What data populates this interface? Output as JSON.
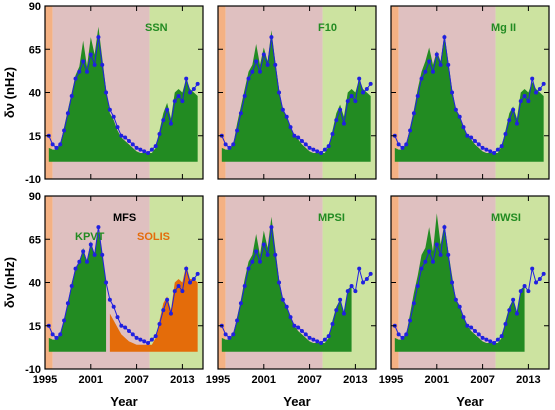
{
  "chart_data": {
    "type": "area",
    "ylabel": "δν (nHz)",
    "xlabel": "Year",
    "xlim": [
      1995,
      2015.7
    ],
    "ylim": [
      -10,
      90
    ],
    "xticks": [
      "1995",
      "2001",
      "2007",
      "2013"
    ],
    "yticks": [
      "-10",
      "15",
      "40",
      "65",
      "90"
    ],
    "regions": [
      {
        "from": 1995,
        "to": 1996.0,
        "color": "#f4b183"
      },
      {
        "from": 1996.0,
        "to": 2008.7,
        "color": "#dfc0c0"
      },
      {
        "from": 2008.7,
        "to": 2015.7,
        "color": "#cce3a0"
      }
    ],
    "frequency_shift": {
      "x": [
        1995.5,
        1996.0,
        1996.5,
        1997.0,
        1997.5,
        1998.0,
        1998.5,
        1999.0,
        1999.5,
        2000.0,
        2000.5,
        2001.0,
        2001.5,
        2002.0,
        2002.5,
        2003.0,
        2003.5,
        2004.0,
        2004.5,
        2005.0,
        2005.5,
        2006.0,
        2006.5,
        2007.0,
        2007.5,
        2008.0,
        2008.5,
        2009.0,
        2009.5,
        2010.0,
        2010.5,
        2011.0,
        2011.5,
        2012.0,
        2012.5,
        2013.0,
        2013.5,
        2014.0,
        2014.5,
        2015.0
      ],
      "y": [
        15,
        10,
        8,
        10,
        18,
        28,
        38,
        48,
        52,
        58,
        52,
        62,
        56,
        72,
        56,
        40,
        30,
        26,
        20,
        15,
        14,
        12,
        10,
        8,
        7,
        6,
        5,
        7,
        9,
        16,
        24,
        30,
        22,
        35,
        38,
        35,
        48,
        40,
        42,
        45
      ]
    },
    "panels": [
      {
        "label": "SSN",
        "color": "#228b22",
        "proxy": [
          8,
          7,
          7,
          10,
          20,
          30,
          40,
          50,
          55,
          70,
          55,
          72,
          62,
          78,
          60,
          42,
          28,
          24,
          18,
          14,
          12,
          10,
          8,
          6,
          5,
          5,
          5,
          5,
          8,
          18,
          28,
          34,
          25,
          40,
          42,
          40,
          48,
          42,
          40,
          38
        ],
        "proxy_range": [
          1995.5,
          2015.0
        ]
      },
      {
        "label": "F10",
        "color": "#228b22",
        "proxy": [
          8,
          7,
          7,
          10,
          22,
          32,
          42,
          52,
          56,
          68,
          56,
          66,
          58,
          76,
          58,
          42,
          30,
          26,
          20,
          15,
          13,
          10,
          8,
          6,
          5,
          5,
          5,
          5,
          9,
          18,
          28,
          33,
          26,
          40,
          42,
          40,
          48,
          42,
          40,
          38
        ],
        "proxy_range": [
          1995.5,
          2015.0
        ]
      },
      {
        "label": "Mg II",
        "color": "#228b22",
        "proxy": [
          8,
          7,
          7,
          10,
          20,
          30,
          42,
          52,
          58,
          66,
          56,
          64,
          58,
          74,
          58,
          42,
          30,
          26,
          20,
          15,
          13,
          10,
          8,
          6,
          5,
          5,
          5,
          5,
          9,
          18,
          28,
          32,
          25,
          40,
          42,
          40,
          46,
          42,
          40,
          38
        ],
        "proxy_range": [
          1995.5,
          2015.0
        ]
      },
      {
        "label": "MFS",
        "sublabels": [
          {
            "text": "KPVT",
            "color": "#228b22"
          },
          {
            "text": "SOLIS",
            "color": "#e46c0a"
          }
        ],
        "color": "#000000",
        "proxy": [
          8,
          7,
          7,
          10,
          18,
          28,
          40,
          48,
          52,
          60,
          52,
          64,
          56,
          70,
          56,
          40,
          22,
          18,
          14,
          10,
          8,
          6,
          5,
          4,
          4,
          4,
          4,
          4,
          8,
          18,
          28,
          32,
          24,
          40,
          42,
          40,
          50,
          42,
          42,
          40
        ],
        "proxy_range": [
          1995.5,
          2015.0
        ],
        "kpvt_range": [
          1995.5,
          2003.3
        ],
        "solis_range": [
          2003.3,
          2015.0
        ]
      },
      {
        "label": "MPSI",
        "color": "#228b22",
        "proxy": [
          8,
          7,
          7,
          10,
          20,
          30,
          42,
          52,
          56,
          68,
          56,
          70,
          60,
          78,
          60,
          42,
          30,
          26,
          20,
          15,
          12,
          10,
          8,
          6,
          5,
          5,
          5,
          5,
          8,
          18,
          26,
          30,
          22,
          36,
          38,
          0,
          0,
          0,
          0,
          0
        ],
        "proxy_range": [
          1995.5,
          2012.5
        ]
      },
      {
        "label": "MWSI",
        "color": "#228b22",
        "proxy": [
          8,
          7,
          7,
          10,
          22,
          34,
          44,
          56,
          60,
          72,
          58,
          80,
          62,
          74,
          58,
          44,
          30,
          26,
          20,
          15,
          12,
          10,
          8,
          6,
          5,
          5,
          5,
          5,
          8,
          18,
          26,
          30,
          22,
          36,
          38,
          0,
          0,
          0,
          0,
          0
        ],
        "proxy_range": [
          1995.5,
          2012.5
        ]
      }
    ]
  }
}
